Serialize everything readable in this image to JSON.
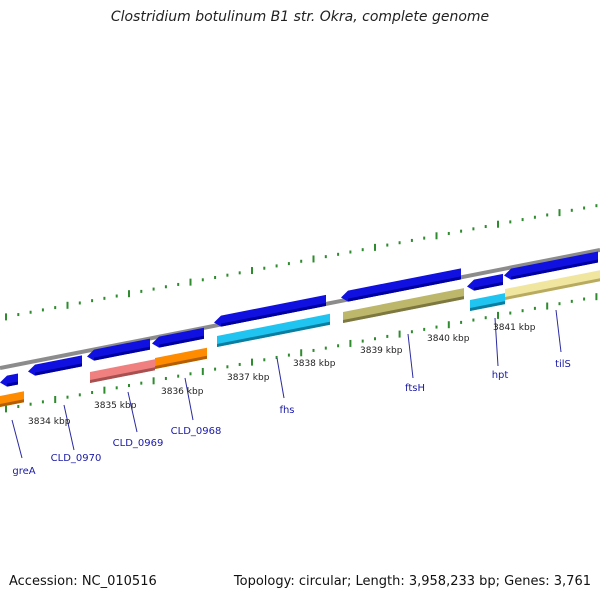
{
  "title": "Clostridium botulinum B1 str. Okra, complete genome",
  "accession": "Accession: NC_010516",
  "summary": "Topology: circular; Length: 3,958,233 bp; Genes: 3,761",
  "colors": {
    "backbone": "#8c8c8c",
    "ticks": "#2e8b2e",
    "label_text": "#1a1aa8",
    "leader": "#2a2aa0"
  },
  "kbp_labels": [
    "3834 kbp",
    "3835 kbp",
    "3836 kbp",
    "3837 kbp",
    "3838 kbp",
    "3839 kbp",
    "3840 kbp",
    "3841 kbp"
  ],
  "genes": [
    {
      "name": "greA",
      "strand": "plus"
    },
    {
      "name": "CLD_0970",
      "strand": "minus"
    },
    {
      "name": "CLD_0969",
      "strand": "minus"
    },
    {
      "name": "CLD_0968",
      "strand": "minus"
    },
    {
      "name": "fhs",
      "strand": "minus"
    },
    {
      "name": "ftsH",
      "strand": "minus"
    },
    {
      "name": "hpt",
      "strand": "minus"
    },
    {
      "name": "tilS",
      "strand": "minus"
    }
  ]
}
